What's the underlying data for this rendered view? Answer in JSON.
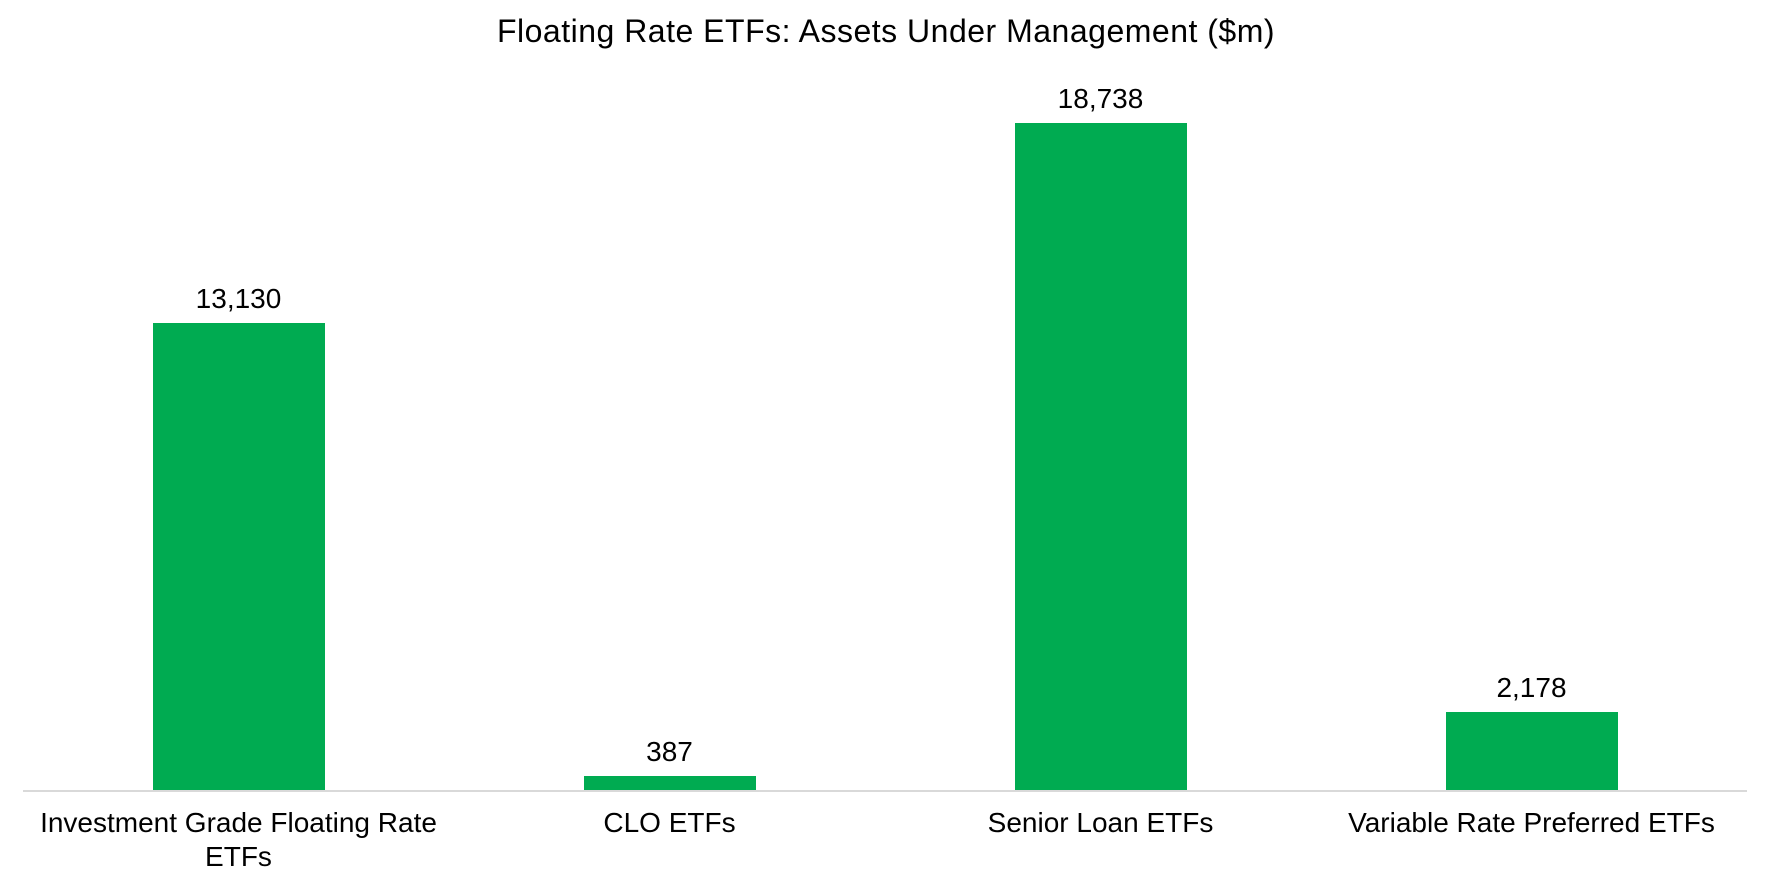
{
  "title": "Floating Rate ETFs: Assets Under Management ($m)",
  "colors": {
    "bar": "#00AB51",
    "axis_line": "#D9D9D9",
    "text": "#000000",
    "background": "#FFFFFF"
  },
  "chart_data": {
    "type": "bar",
    "title": "Floating Rate ETFs: Assets Under Management ($m)",
    "categories": [
      "Investment Grade Floating Rate ETFs",
      "CLO ETFs",
      "Senior Loan ETFs",
      "Variable Rate Preferred ETFs"
    ],
    "values": [
      13130,
      387,
      18738,
      2178
    ],
    "data_labels": [
      "13,130",
      "387",
      "18,738",
      "2,178"
    ],
    "xlabel": "",
    "ylabel": "",
    "ylim": [
      0,
      20000
    ],
    "grid": false,
    "legend": false,
    "y_axis_visible": false,
    "data_labels_position": "above-bar-end",
    "bar_color": "#00AB51",
    "baseline_color": "#D9D9D9"
  }
}
